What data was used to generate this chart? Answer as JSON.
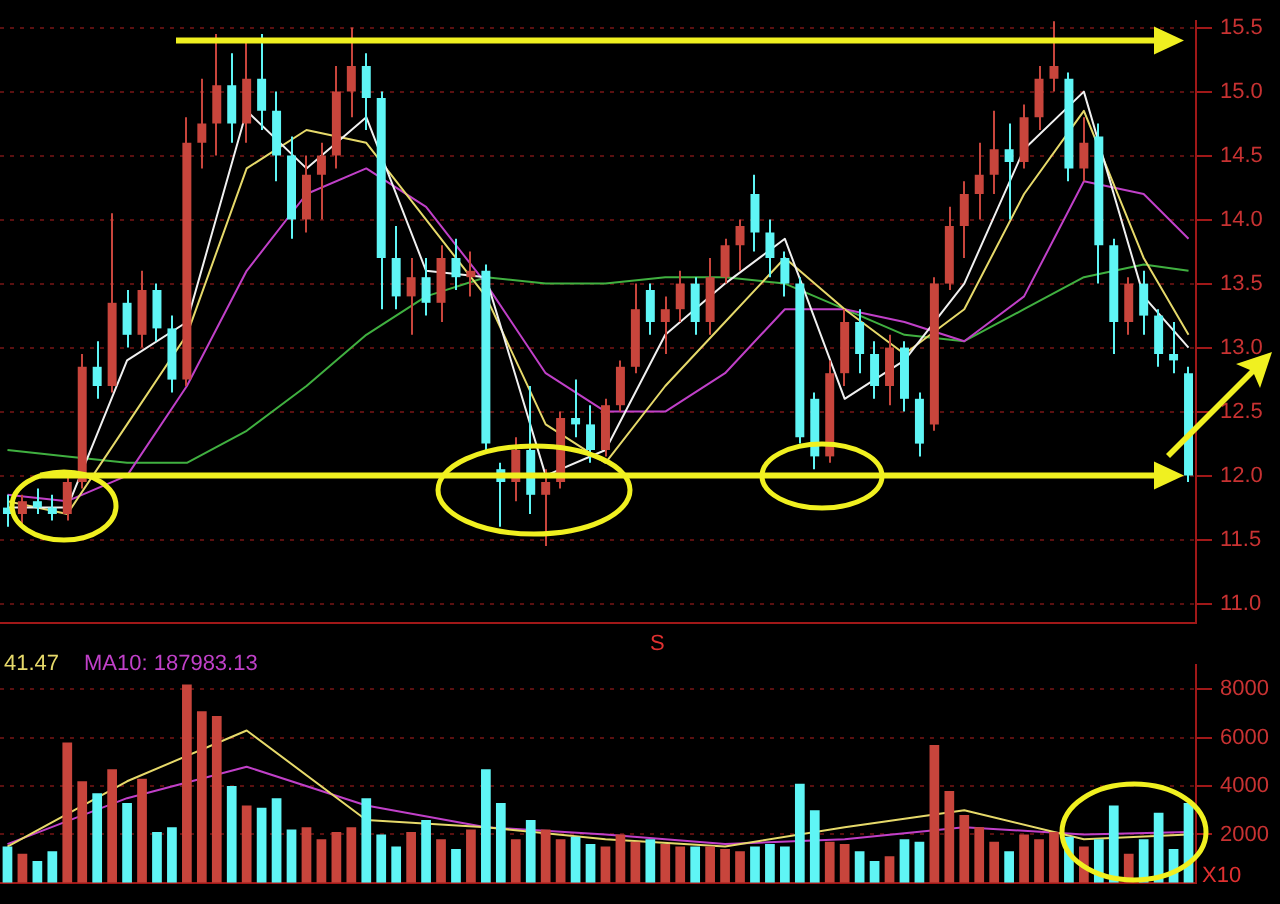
{
  "chart_data": [
    {
      "type": "candlestick",
      "categories": [
        null,
        null,
        null,
        null,
        null,
        null,
        null,
        null,
        null,
        null,
        null,
        null,
        null,
        null,
        null,
        null,
        null,
        null,
        null,
        null,
        null,
        null,
        null,
        null,
        null,
        null,
        null,
        null,
        null,
        null,
        null,
        null,
        null,
        null,
        null,
        null,
        null,
        null,
        null,
        null,
        null,
        null,
        null,
        null,
        null,
        null,
        null,
        null,
        null,
        null,
        null,
        null,
        null,
        null,
        null,
        null,
        null,
        null,
        null,
        null,
        null,
        null,
        null,
        null,
        null,
        null,
        null,
        null,
        null,
        null,
        null,
        null,
        null,
        null,
        null,
        null,
        null,
        null,
        null,
        null
      ],
      "ohlc": [
        [
          11.75,
          11.85,
          11.6,
          11.7
        ],
        [
          11.7,
          11.85,
          11.62,
          11.8
        ],
        [
          11.8,
          11.9,
          11.7,
          11.75
        ],
        [
          11.75,
          11.85,
          11.65,
          11.7
        ],
        [
          11.7,
          12.0,
          11.65,
          11.95
        ],
        [
          11.95,
          12.95,
          11.9,
          12.85
        ],
        [
          12.85,
          13.05,
          12.6,
          12.7
        ],
        [
          12.7,
          14.05,
          12.65,
          13.35
        ],
        [
          13.35,
          13.45,
          13.0,
          13.1
        ],
        [
          13.1,
          13.6,
          13.0,
          13.45
        ],
        [
          13.45,
          13.5,
          13.05,
          13.15
        ],
        [
          13.15,
          13.25,
          12.65,
          12.75
        ],
        [
          12.75,
          14.8,
          12.7,
          14.6
        ],
        [
          14.6,
          15.1,
          14.4,
          14.75
        ],
        [
          14.75,
          15.45,
          14.5,
          15.05
        ],
        [
          15.05,
          15.3,
          14.6,
          14.75
        ],
        [
          14.75,
          15.4,
          14.6,
          15.1
        ],
        [
          15.1,
          15.45,
          14.7,
          14.85
        ],
        [
          14.85,
          15.0,
          14.3,
          14.5
        ],
        [
          14.5,
          14.65,
          13.85,
          14.0
        ],
        [
          14.0,
          14.5,
          13.9,
          14.35
        ],
        [
          14.35,
          14.6,
          14.0,
          14.5
        ],
        [
          14.5,
          15.2,
          14.4,
          15.0
        ],
        [
          15.0,
          15.5,
          14.8,
          15.2
        ],
        [
          15.2,
          15.3,
          14.7,
          14.95
        ],
        [
          14.95,
          15.0,
          13.3,
          13.7
        ],
        [
          13.7,
          13.95,
          13.3,
          13.4
        ],
        [
          13.4,
          13.7,
          13.1,
          13.55
        ],
        [
          13.55,
          13.7,
          13.25,
          13.35
        ],
        [
          13.35,
          13.8,
          13.2,
          13.7
        ],
        [
          13.7,
          13.85,
          13.45,
          13.55
        ],
        [
          13.55,
          13.75,
          13.4,
          13.6
        ],
        [
          13.6,
          13.65,
          12.2,
          12.25
        ],
        [
          12.05,
          12.1,
          11.6,
          11.95
        ],
        [
          11.95,
          12.3,
          11.8,
          12.2
        ],
        [
          12.2,
          12.7,
          11.7,
          11.85
        ],
        [
          11.85,
          12.05,
          11.45,
          11.95
        ],
        [
          11.95,
          12.5,
          11.9,
          12.45
        ],
        [
          12.45,
          12.75,
          12.3,
          12.4
        ],
        [
          12.4,
          12.55,
          12.1,
          12.2
        ],
        [
          12.2,
          12.6,
          12.15,
          12.55
        ],
        [
          12.55,
          12.9,
          12.5,
          12.85
        ],
        [
          12.85,
          13.5,
          12.8,
          13.3
        ],
        [
          13.45,
          13.5,
          13.1,
          13.2
        ],
        [
          13.2,
          13.4,
          12.95,
          13.3
        ],
        [
          13.3,
          13.6,
          13.2,
          13.5
        ],
        [
          13.5,
          13.55,
          13.1,
          13.2
        ],
        [
          13.2,
          13.7,
          13.1,
          13.55
        ],
        [
          13.55,
          13.85,
          13.5,
          13.8
        ],
        [
          13.8,
          14.0,
          13.6,
          13.95
        ],
        [
          14.2,
          14.35,
          13.75,
          13.9
        ],
        [
          13.9,
          14.0,
          13.55,
          13.7
        ],
        [
          13.7,
          13.75,
          13.4,
          13.5
        ],
        [
          13.5,
          13.55,
          12.25,
          12.3
        ],
        [
          12.6,
          12.65,
          12.05,
          12.15
        ],
        [
          12.15,
          12.9,
          12.1,
          12.8
        ],
        [
          12.8,
          13.3,
          12.7,
          13.2
        ],
        [
          13.2,
          13.3,
          12.8,
          12.95
        ],
        [
          12.95,
          13.05,
          12.6,
          12.7
        ],
        [
          12.7,
          13.1,
          12.55,
          13.0
        ],
        [
          13.0,
          13.05,
          12.5,
          12.6
        ],
        [
          12.6,
          12.65,
          12.15,
          12.25
        ],
        [
          12.4,
          13.55,
          12.35,
          13.5
        ],
        [
          13.5,
          14.1,
          13.45,
          13.95
        ],
        [
          13.95,
          14.3,
          13.7,
          14.2
        ],
        [
          14.2,
          14.6,
          14.0,
          14.35
        ],
        [
          14.35,
          14.85,
          14.2,
          14.55
        ],
        [
          14.55,
          14.75,
          14.0,
          14.45
        ],
        [
          14.45,
          14.9,
          14.4,
          14.8
        ],
        [
          14.8,
          15.2,
          14.7,
          15.1
        ],
        [
          15.1,
          15.55,
          15.0,
          15.2
        ],
        [
          15.1,
          15.15,
          14.3,
          14.4
        ],
        [
          14.4,
          14.8,
          14.3,
          14.6
        ],
        [
          14.65,
          14.75,
          13.5,
          13.8
        ],
        [
          13.8,
          13.85,
          12.95,
          13.2
        ],
        [
          13.2,
          13.55,
          13.1,
          13.5
        ],
        [
          13.5,
          13.6,
          13.1,
          13.25
        ],
        [
          13.25,
          13.3,
          12.85,
          12.95
        ],
        [
          12.95,
          13.2,
          12.8,
          12.9
        ],
        [
          12.8,
          12.85,
          11.95,
          12.0
        ]
      ],
      "colors": [
        "#5ff5f5",
        "#c8453c",
        "#5ff5f5",
        "#5ff5f5",
        "#c8453c",
        "#c8453c",
        "#5ff5f5",
        "#c8453c",
        "#5ff5f5",
        "#c8453c",
        "#5ff5f5",
        "#5ff5f5",
        "#c8453c",
        "#c8453c",
        "#c8453c",
        "#5ff5f5",
        "#c8453c",
        "#5ff5f5",
        "#5ff5f5",
        "#5ff5f5",
        "#c8453c",
        "#c8453c",
        "#c8453c",
        "#c8453c",
        "#5ff5f5",
        "#5ff5f5",
        "#5ff5f5",
        "#c8453c",
        "#5ff5f5",
        "#c8453c",
        "#5ff5f5",
        "#c8453c",
        "#5ff5f5",
        "#5ff5f5",
        "#c8453c",
        "#5ff5f5",
        "#c8453c",
        "#c8453c",
        "#5ff5f5",
        "#5ff5f5",
        "#c8453c",
        "#c8453c",
        "#c8453c",
        "#5ff5f5",
        "#c8453c",
        "#c8453c",
        "#5ff5f5",
        "#c8453c",
        "#c8453c",
        "#c8453c",
        "#5ff5f5",
        "#5ff5f5",
        "#5ff5f5",
        "#5ff5f5",
        "#5ff5f5",
        "#c8453c",
        "#c8453c",
        "#5ff5f5",
        "#5ff5f5",
        "#c8453c",
        "#5ff5f5",
        "#5ff5f5",
        "#c8453c",
        "#c8453c",
        "#c8453c",
        "#c8453c",
        "#c8453c",
        "#5ff5f5",
        "#c8453c",
        "#c8453c",
        "#c8453c",
        "#5ff5f5",
        "#c8453c",
        "#5ff5f5",
        "#5ff5f5",
        "#c8453c",
        "#5ff5f5",
        "#5ff5f5",
        "#5ff5f5",
        "#5ff5f5"
      ],
      "series": [
        {
          "type": "line",
          "color": "#f0f0f0",
          "values": [
            11.75,
            null,
            null,
            null,
            11.75,
            null,
            null,
            null,
            12.9,
            null,
            null,
            null,
            13.2,
            null,
            null,
            null,
            14.85,
            null,
            null,
            null,
            14.4,
            null,
            null,
            null,
            14.8,
            null,
            null,
            null,
            13.6,
            null,
            null,
            null,
            13.55,
            null,
            null,
            null,
            12.0,
            null,
            null,
            null,
            12.2,
            null,
            null,
            null,
            13.1,
            null,
            null,
            null,
            13.5,
            null,
            null,
            null,
            13.85,
            null,
            null,
            null,
            12.6,
            null,
            null,
            null,
            12.9,
            null,
            null,
            null,
            13.5,
            null,
            null,
            null,
            14.55,
            null,
            null,
            null,
            15.0,
            null,
            null,
            null,
            13.4,
            null,
            null,
            13.0
          ]
        },
        {
          "type": "line",
          "color": "#e6d96a",
          "values": [
            11.8,
            null,
            null,
            null,
            11.7,
            null,
            null,
            null,
            12.4,
            null,
            null,
            null,
            13.1,
            null,
            null,
            null,
            14.4,
            null,
            null,
            null,
            14.7,
            null,
            null,
            null,
            14.6,
            null,
            null,
            null,
            14.0,
            null,
            null,
            null,
            13.4,
            null,
            null,
            null,
            12.4,
            null,
            null,
            null,
            12.1,
            null,
            null,
            null,
            12.7,
            null,
            null,
            null,
            13.2,
            null,
            null,
            null,
            13.7,
            null,
            null,
            null,
            13.3,
            null,
            null,
            null,
            12.95,
            null,
            null,
            null,
            13.3,
            null,
            null,
            null,
            14.2,
            null,
            null,
            null,
            14.85,
            null,
            null,
            null,
            13.7,
            null,
            null,
            13.1
          ]
        },
        {
          "type": "line",
          "color": "#c040c8",
          "values": [
            11.85,
            null,
            null,
            null,
            11.8,
            null,
            null,
            null,
            12.0,
            null,
            null,
            null,
            12.7,
            null,
            null,
            null,
            13.6,
            null,
            null,
            null,
            14.2,
            null,
            null,
            null,
            14.4,
            null,
            null,
            null,
            14.1,
            null,
            null,
            null,
            13.5,
            null,
            null,
            null,
            12.8,
            null,
            null,
            null,
            12.5,
            null,
            null,
            null,
            12.5,
            null,
            null,
            null,
            12.8,
            null,
            null,
            null,
            13.3,
            null,
            null,
            null,
            13.3,
            null,
            null,
            null,
            13.2,
            null,
            null,
            null,
            13.05,
            null,
            null,
            null,
            13.4,
            null,
            null,
            null,
            14.3,
            null,
            null,
            null,
            14.2,
            null,
            null,
            13.85
          ]
        },
        {
          "type": "line",
          "color": "#40b040",
          "values": [
            12.2,
            null,
            null,
            null,
            12.15,
            null,
            null,
            null,
            12.1,
            null,
            null,
            null,
            12.1,
            null,
            null,
            null,
            12.35,
            null,
            null,
            null,
            12.7,
            null,
            null,
            null,
            13.1,
            null,
            null,
            null,
            13.4,
            null,
            null,
            null,
            13.55,
            null,
            null,
            null,
            13.5,
            null,
            null,
            null,
            13.5,
            null,
            null,
            null,
            13.55,
            null,
            null,
            null,
            13.55,
            null,
            null,
            null,
            13.5,
            null,
            null,
            null,
            13.3,
            null,
            null,
            null,
            13.1,
            null,
            null,
            null,
            13.05,
            null,
            null,
            null,
            13.3,
            null,
            null,
            null,
            13.55,
            null,
            null,
            null,
            13.65,
            null,
            null,
            13.6
          ]
        }
      ],
      "ylim": [
        10.85,
        15.55
      ],
      "yticks": [
        {
          "value": 15.5,
          "label": "15.5"
        },
        {
          "value": 15,
          "label": "15.0"
        },
        14.5,
        {
          "value": 14,
          "label": "14.0"
        },
        13.5,
        {
          "value": 13,
          "label": "13.0"
        },
        12.5,
        {
          "value": 12,
          "label": "12.0"
        },
        11.5,
        {
          "value": 11,
          "label": "11.0"
        }
      ],
      "ref_lines": [
        {
          "axis": "y",
          "value": 15.4,
          "color": "#f0f020"
        },
        {
          "axis": "y",
          "value": 12.0,
          "color": "#f0f020"
        }
      ],
      "grid": "y",
      "tick_labels": "y"
    },
    {
      "type": "bar",
      "categories": [
        null,
        null,
        null,
        null,
        null,
        null,
        null,
        null,
        null,
        null,
        null,
        null,
        null,
        null,
        null,
        null,
        null,
        null,
        null,
        null,
        null,
        null,
        null,
        null,
        null,
        null,
        null,
        null,
        null,
        null,
        null,
        null,
        null,
        null,
        null,
        null,
        null,
        null,
        null,
        null,
        null,
        null,
        null,
        null,
        null,
        null,
        null,
        null,
        null,
        null,
        null,
        null,
        null,
        null,
        null,
        null,
        null,
        null,
        null,
        null,
        null,
        null,
        null,
        null,
        null,
        null,
        null,
        null,
        null,
        null,
        null,
        null,
        null,
        null,
        null,
        null,
        null,
        null,
        null,
        null
      ],
      "values": [
        1500,
        1200,
        900,
        1300,
        5800,
        4200,
        3700,
        4700,
        3300,
        4300,
        2100,
        2300,
        8200,
        7100,
        6900,
        4000,
        3200,
        3100,
        3500,
        2200,
        2300,
        1800,
        2100,
        2300,
        3500,
        2000,
        1500,
        2100,
        2600,
        1800,
        1400,
        2200,
        4700,
        3300,
        1800,
        2600,
        2200,
        1800,
        1900,
        1600,
        1500,
        2000,
        1700,
        1800,
        1600,
        1500,
        1500,
        1500,
        1400,
        1300,
        1500,
        1600,
        1500,
        4100,
        3000,
        1700,
        1600,
        1300,
        900,
        1100,
        1800,
        1700,
        5700,
        3800,
        2800,
        2300,
        1700,
        1300,
        2000,
        1800,
        2100,
        1900,
        1500,
        1800,
        3200,
        1200,
        1800,
        2900,
        1400,
        3300
      ],
      "colors": [
        "#5ff5f5",
        "#c8453c",
        "#5ff5f5",
        "#5ff5f5",
        "#c8453c",
        "#c8453c",
        "#5ff5f5",
        "#c8453c",
        "#5ff5f5",
        "#c8453c",
        "#5ff5f5",
        "#5ff5f5",
        "#c8453c",
        "#c8453c",
        "#c8453c",
        "#5ff5f5",
        "#c8453c",
        "#5ff5f5",
        "#5ff5f5",
        "#5ff5f5",
        "#c8453c",
        "#c8453c",
        "#c8453c",
        "#c8453c",
        "#5ff5f5",
        "#5ff5f5",
        "#5ff5f5",
        "#c8453c",
        "#5ff5f5",
        "#c8453c",
        "#5ff5f5",
        "#c8453c",
        "#5ff5f5",
        "#5ff5f5",
        "#c8453c",
        "#5ff5f5",
        "#c8453c",
        "#c8453c",
        "#5ff5f5",
        "#5ff5f5",
        "#c8453c",
        "#c8453c",
        "#c8453c",
        "#5ff5f5",
        "#c8453c",
        "#c8453c",
        "#5ff5f5",
        "#c8453c",
        "#c8453c",
        "#c8453c",
        "#5ff5f5",
        "#5ff5f5",
        "#5ff5f5",
        "#5ff5f5",
        "#5ff5f5",
        "#c8453c",
        "#c8453c",
        "#5ff5f5",
        "#5ff5f5",
        "#c8453c",
        "#5ff5f5",
        "#5ff5f5",
        "#c8453c",
        "#c8453c",
        "#c8453c",
        "#c8453c",
        "#c8453c",
        "#5ff5f5",
        "#c8453c",
        "#c8453c",
        "#c8453c",
        "#5ff5f5",
        "#c8453c",
        "#5ff5f5",
        "#5ff5f5",
        "#c8453c",
        "#5ff5f5",
        "#5ff5f5",
        "#5ff5f5",
        "#5ff5f5"
      ],
      "series": [
        {
          "type": "line",
          "color": "#e6d96a",
          "values": [
            1500,
            null,
            null,
            null,
            null,
            null,
            null,
            null,
            4200,
            null,
            null,
            null,
            null,
            null,
            null,
            null,
            6300,
            null,
            null,
            null,
            null,
            null,
            null,
            null,
            2600,
            null,
            null,
            null,
            null,
            null,
            null,
            null,
            2300,
            null,
            null,
            null,
            null,
            null,
            null,
            null,
            1800,
            null,
            null,
            null,
            null,
            null,
            null,
            null,
            1500,
            null,
            null,
            null,
            null,
            null,
            null,
            null,
            2300,
            null,
            null,
            null,
            null,
            null,
            null,
            null,
            3000,
            null,
            null,
            null,
            null,
            null,
            null,
            null,
            1800,
            null,
            null,
            null,
            null,
            null,
            null,
            2000
          ]
        },
        {
          "type": "line",
          "color": "#c040c8",
          "values": [
            1600,
            null,
            null,
            null,
            null,
            null,
            null,
            null,
            3500,
            null,
            null,
            null,
            null,
            null,
            null,
            null,
            4800,
            null,
            null,
            null,
            null,
            null,
            null,
            null,
            3200,
            null,
            null,
            null,
            null,
            null,
            null,
            null,
            2300,
            null,
            null,
            null,
            null,
            null,
            null,
            null,
            2000,
            null,
            null,
            null,
            null,
            null,
            null,
            null,
            1600,
            null,
            null,
            null,
            null,
            null,
            null,
            null,
            1800,
            null,
            null,
            null,
            null,
            null,
            null,
            null,
            2300,
            null,
            null,
            null,
            null,
            null,
            null,
            null,
            2000,
            null,
            null,
            null,
            null,
            null,
            null,
            2100
          ]
        }
      ],
      "ylim": [
        0,
        9000
      ],
      "yticks": [
        2000,
        4000,
        6000,
        8000
      ],
      "grid": "y",
      "tick_labels": "y",
      "annotations": [
        "41.47",
        "MA10: 187983.13",
        "S",
        "X10"
      ]
    }
  ]
}
